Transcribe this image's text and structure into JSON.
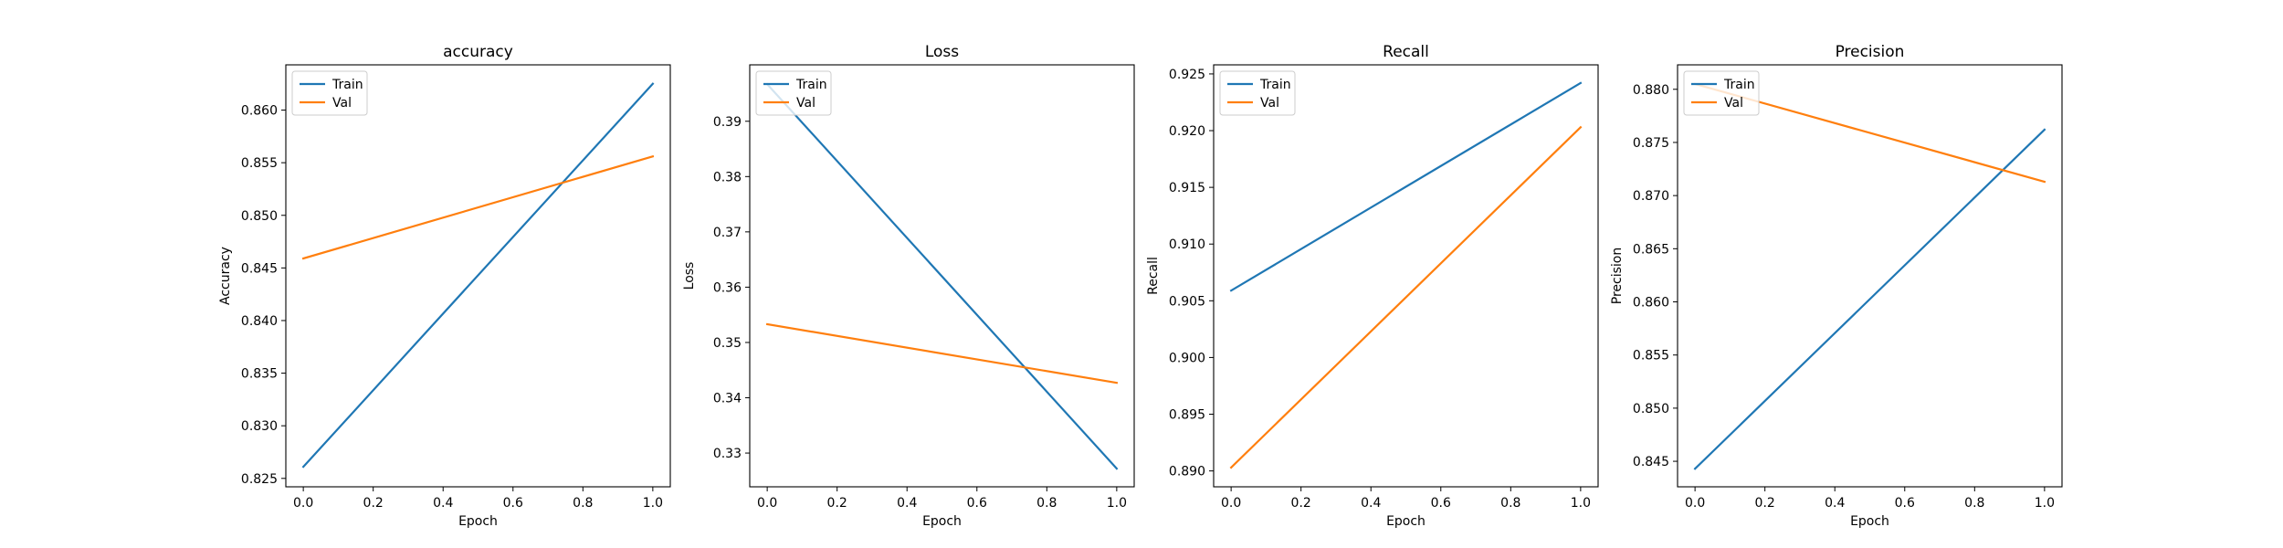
{
  "chart_data": [
    {
      "type": "line",
      "title": "accuracy",
      "xlabel": "Epoch",
      "ylabel": "Accuracy",
      "xlim": [
        -0.05,
        1.05
      ],
      "ylim": [
        0.8242,
        0.8643
      ],
      "xticks": [
        0.0,
        0.2,
        0.4,
        0.6,
        0.8,
        1.0
      ],
      "xtick_labels": [
        "0.0",
        "0.2",
        "0.4",
        "0.6",
        "0.8",
        "1.0"
      ],
      "yticks": [
        0.825,
        0.83,
        0.835,
        0.84,
        0.845,
        0.85,
        0.855,
        0.86
      ],
      "ytick_labels": [
        "0.825",
        "0.830",
        "0.835",
        "0.840",
        "0.845",
        "0.850",
        "0.855",
        "0.860"
      ],
      "legend": "upper-left",
      "grid": false,
      "series": [
        {
          "name": "Train",
          "color": "#1f77b4",
          "x": [
            0,
            1
          ],
          "y": [
            0.8261,
            0.8625
          ]
        },
        {
          "name": "Val",
          "color": "#ff7f0e",
          "x": [
            0,
            1
          ],
          "y": [
            0.8459,
            0.8556
          ]
        }
      ]
    },
    {
      "type": "line",
      "title": "Loss",
      "xlabel": "Epoch",
      "ylabel": "Loss",
      "xlim": [
        -0.05,
        1.05
      ],
      "ylim": [
        0.3239,
        0.4002
      ],
      "xticks": [
        0.0,
        0.2,
        0.4,
        0.6,
        0.8,
        1.0
      ],
      "xtick_labels": [
        "0.0",
        "0.2",
        "0.4",
        "0.6",
        "0.8",
        "1.0"
      ],
      "yticks": [
        0.33,
        0.34,
        0.35,
        0.36,
        0.37,
        0.38,
        0.39
      ],
      "ytick_labels": [
        "0.33",
        "0.34",
        "0.35",
        "0.36",
        "0.37",
        "0.38",
        "0.39"
      ],
      "legend": "upper-left",
      "grid": false,
      "series": [
        {
          "name": "Train",
          "color": "#1f77b4",
          "x": [
            0,
            1
          ],
          "y": [
            0.3967,
            0.3272
          ]
        },
        {
          "name": "Val",
          "color": "#ff7f0e",
          "x": [
            0,
            1
          ],
          "y": [
            0.3533,
            0.3427
          ]
        }
      ]
    },
    {
      "type": "line",
      "title": "Recall",
      "xlabel": "Epoch",
      "ylabel": "Recall",
      "xlim": [
        -0.05,
        1.05
      ],
      "ylim": [
        0.8886,
        0.9258
      ],
      "xticks": [
        0.0,
        0.2,
        0.4,
        0.6,
        0.8,
        1.0
      ],
      "xtick_labels": [
        "0.0",
        "0.2",
        "0.4",
        "0.6",
        "0.8",
        "1.0"
      ],
      "yticks": [
        0.89,
        0.895,
        0.9,
        0.905,
        0.91,
        0.915,
        0.92,
        0.925
      ],
      "ytick_labels": [
        "0.890",
        "0.895",
        "0.900",
        "0.905",
        "0.910",
        "0.915",
        "0.920",
        "0.925"
      ],
      "legend": "upper-left",
      "grid": false,
      "series": [
        {
          "name": "Train",
          "color": "#1f77b4",
          "x": [
            0,
            1
          ],
          "y": [
            0.9059,
            0.9242
          ]
        },
        {
          "name": "Val",
          "color": "#ff7f0e",
          "x": [
            0,
            1
          ],
          "y": [
            0.8903,
            0.9203
          ]
        }
      ]
    },
    {
      "type": "line",
      "title": "Precision",
      "xlabel": "Epoch",
      "ylabel": "Precision",
      "xlim": [
        -0.05,
        1.05
      ],
      "ylim": [
        0.8426,
        0.8823
      ],
      "xticks": [
        0.0,
        0.2,
        0.4,
        0.6,
        0.8,
        1.0
      ],
      "xtick_labels": [
        "0.0",
        "0.2",
        "0.4",
        "0.6",
        "0.8",
        "1.0"
      ],
      "yticks": [
        0.845,
        0.85,
        0.855,
        0.86,
        0.865,
        0.87,
        0.875,
        0.88
      ],
      "ytick_labels": [
        "0.845",
        "0.850",
        "0.855",
        "0.860",
        "0.865",
        "0.870",
        "0.875",
        "0.880"
      ],
      "legend": "upper-left",
      "grid": false,
      "series": [
        {
          "name": "Train",
          "color": "#1f77b4",
          "x": [
            0,
            1
          ],
          "y": [
            0.8443,
            0.8762
          ]
        },
        {
          "name": "Val",
          "color": "#ff7f0e",
          "x": [
            0,
            1
          ],
          "y": [
            0.8805,
            0.8713
          ]
        }
      ]
    }
  ]
}
